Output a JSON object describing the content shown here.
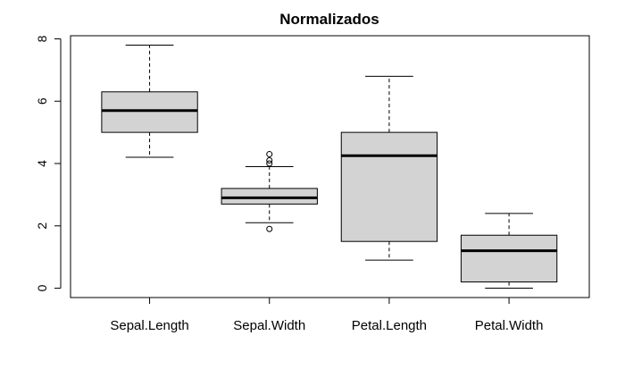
{
  "chart_data": {
    "type": "boxplot",
    "title": "Normalizados",
    "xlabel": "",
    "ylabel": "",
    "ylim": [
      -0.3,
      8.1
    ],
    "yticks": [
      0,
      2,
      4,
      6,
      8
    ],
    "grid": false,
    "box_color": "#d3d3d3",
    "categories": [
      "Sepal.Length",
      "Sepal.Width",
      "Petal.Length",
      "Petal.Width"
    ],
    "boxes": [
      {
        "whisker_low": 4.2,
        "q1": 5.0,
        "median": 5.7,
        "q3": 6.3,
        "whisker_high": 7.8,
        "outliers": []
      },
      {
        "whisker_low": 2.1,
        "q1": 2.7,
        "median": 2.9,
        "q3": 3.2,
        "whisker_high": 3.9,
        "outliers": [
          4.0,
          4.1,
          4.3,
          1.9
        ]
      },
      {
        "whisker_low": 0.9,
        "q1": 1.5,
        "median": 4.25,
        "q3": 5.0,
        "whisker_high": 6.8,
        "outliers": []
      },
      {
        "whisker_low": 0.0,
        "q1": 0.2,
        "median": 1.2,
        "q3": 1.7,
        "whisker_high": 2.4,
        "outliers": []
      }
    ]
  }
}
